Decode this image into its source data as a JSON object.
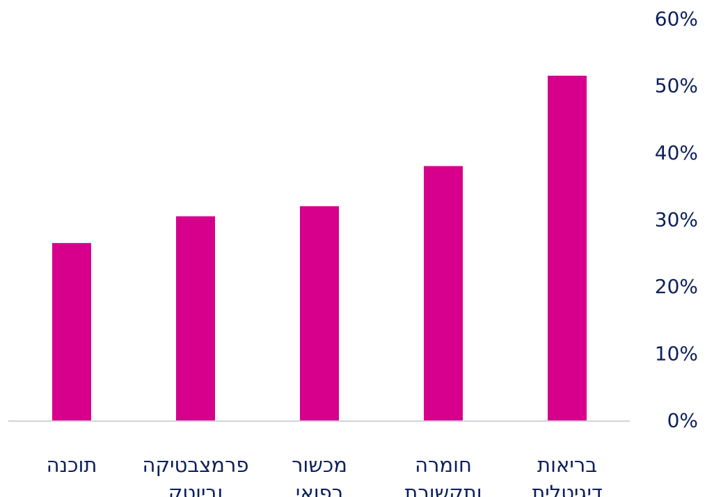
{
  "chart_data": {
    "type": "bar",
    "categories": [
      [
        "בריאות",
        "דיגיטלית"
      ],
      [
        "חומרה",
        "ותקשורת"
      ],
      [
        "מכשור",
        "רפואי"
      ],
      [
        "פרמצבטיקה",
        "וביוטק"
      ],
      [
        "תוכנה"
      ]
    ],
    "values": [
      51.5,
      38,
      32,
      30.5,
      26.5
    ],
    "value_unit": "%",
    "ylim": [
      0,
      60
    ],
    "yticks": [
      "0%",
      "10%",
      "20%",
      "30%",
      "40%",
      "50%",
      "60%"
    ],
    "y_axis_side": "right",
    "category_order": "right-to-left",
    "grid": false,
    "legend": "none",
    "title": "",
    "xlabel": "",
    "ylabel": "",
    "colors": {
      "bar": "#d6008c",
      "axis_line": "#d0d3da",
      "text": "#0d1f5c"
    }
  }
}
